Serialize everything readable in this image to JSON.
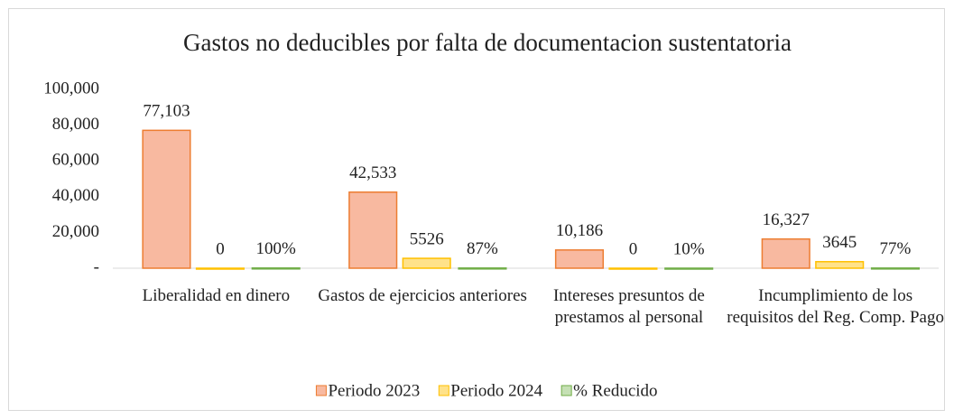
{
  "chart_data": {
    "type": "bar",
    "title": "Gastos no deducibles por falta de documentacion sustentatoria",
    "categories": [
      "Liberalidad en dinero",
      "Gastos de ejercicios anteriores",
      "Intereses presuntos de prestamos al personal",
      "Incumplimiento de los requisitos del Reg. Comp. Pago"
    ],
    "series": [
      {
        "name": "Periodo  2023",
        "color": "#f8b9a0",
        "stroke": "#ed7d31",
        "values": [
          77103,
          42533,
          10186,
          16327
        ],
        "value_labels": [
          "77,103",
          "42,533",
          "10,186",
          "16,327"
        ]
      },
      {
        "name": "Periodo  2024",
        "color": "#ffe28a",
        "stroke": "#ffc000",
        "values": [
          0,
          5526,
          0,
          3645
        ]
      },
      {
        "name": "% Reducido",
        "color": "#c5e0b4",
        "stroke": "#70ad47",
        "values": [
          100,
          87,
          10,
          77
        ],
        "value_labels": [
          "100%",
          "87%",
          "10%",
          "77%"
        ]
      }
    ],
    "ylim": [
      0,
      100000
    ],
    "yticks": [
      {
        "value": 0,
        "label": "-"
      },
      {
        "value": 20000,
        "label": "20,000"
      },
      {
        "value": 40000,
        "label": "40,000"
      },
      {
        "value": 60000,
        "label": "60,000"
      },
      {
        "value": 80000,
        "label": "80,000"
      },
      {
        "value": 100000,
        "label": "100,000"
      }
    ],
    "grid": false,
    "legend": "bottom"
  }
}
